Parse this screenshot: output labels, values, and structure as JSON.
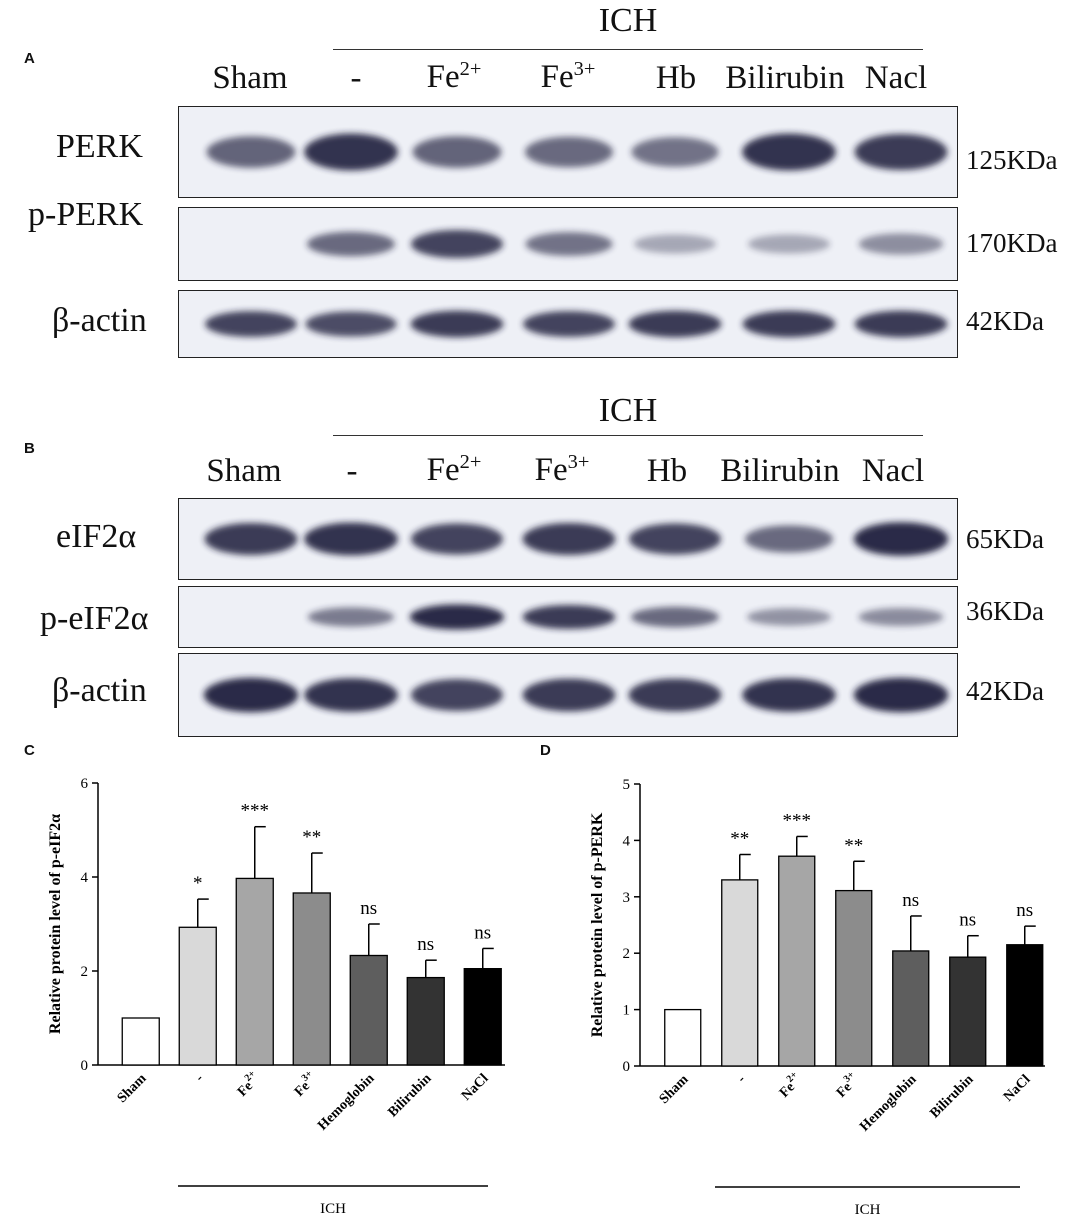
{
  "colors": {
    "band": "#1c1b3a",
    "membrane": "#eef0f6"
  },
  "blot_panels": [
    {
      "letter": "A",
      "group_label": "ICH",
      "lanes": [
        "Sham",
        "-",
        "Fe2+",
        "Fe3+",
        "Hb",
        "Bilirubin",
        "Nacl"
      ],
      "rows": [
        {
          "label": "PERK",
          "kda": "125KDa",
          "intensity": [
            0.55,
            0.85,
            0.55,
            0.5,
            0.45,
            0.85,
            0.8
          ]
        },
        {
          "label": "p-PERK",
          "kda": "170KDa",
          "intensity": [
            0.0,
            0.5,
            0.75,
            0.45,
            0.12,
            0.12,
            0.28
          ]
        },
        {
          "label": "β-actin",
          "kda": "42KDa",
          "intensity": [
            0.75,
            0.7,
            0.8,
            0.75,
            0.8,
            0.8,
            0.8
          ]
        }
      ]
    },
    {
      "letter": "B",
      "group_label": "ICH",
      "lanes": [
        "Sham",
        "-",
        "Fe2+",
        "Fe3+",
        "Hb",
        "Bilirubin",
        "Nacl"
      ],
      "rows": [
        {
          "label": "eIF2α",
          "kda": "65KDa",
          "intensity": [
            0.8,
            0.85,
            0.75,
            0.8,
            0.75,
            0.5,
            0.9
          ]
        },
        {
          "label": "p-eIF2α",
          "kda": "36KDa",
          "intensity": [
            0.0,
            0.4,
            0.9,
            0.8,
            0.5,
            0.25,
            0.3
          ]
        },
        {
          "label": "β-actin",
          "kda": "42KDa",
          "intensity": [
            0.9,
            0.85,
            0.75,
            0.8,
            0.8,
            0.85,
            0.9
          ]
        }
      ]
    }
  ],
  "chart_data": [
    {
      "type": "bar",
      "panel": "C",
      "ylabel": "Relative protein level of p-eIF2α",
      "ylim": [
        0,
        6
      ],
      "yticks": [
        "0",
        "2",
        "4",
        "6"
      ],
      "categories": [
        "Sham",
        "-",
        "Fe2+",
        "Fe3+",
        "Hemoglobin",
        "Bilirubin",
        "NaCl"
      ],
      "values": [
        1.0,
        2.93,
        3.97,
        3.66,
        2.33,
        1.86,
        2.05
      ],
      "errors": [
        0.0,
        0.6,
        1.1,
        0.85,
        0.67,
        0.37,
        0.43
      ],
      "significance": [
        "",
        "*",
        "***",
        "**",
        "ns",
        "ns",
        "ns"
      ],
      "bar_colors": [
        "#ffffff",
        "#d9d9d9",
        "#a6a6a6",
        "#8c8c8c",
        "#5e5e5e",
        "#333333",
        "#000000"
      ],
      "group_label": "ICH"
    },
    {
      "type": "bar",
      "panel": "D",
      "ylabel": "Relative protein level of p-PERK",
      "ylim": [
        0,
        5
      ],
      "yticks": [
        "0",
        "1",
        "2",
        "3",
        "4",
        "5"
      ],
      "categories": [
        "Sham",
        "-",
        "Fe2+",
        "Fe3+",
        "Hemoglobin",
        "Bilirubin",
        "NaCl"
      ],
      "values": [
        1.0,
        3.3,
        3.72,
        3.11,
        2.04,
        1.93,
        2.15
      ],
      "errors": [
        0.0,
        0.45,
        0.35,
        0.52,
        0.62,
        0.38,
        0.33
      ],
      "significance": [
        "",
        "**",
        "***",
        "**",
        "ns",
        "ns",
        "ns"
      ],
      "bar_colors": [
        "#ffffff",
        "#d9d9d9",
        "#a6a6a6",
        "#8c8c8c",
        "#5e5e5e",
        "#333333",
        "#000000"
      ],
      "group_label": "ICH"
    }
  ]
}
